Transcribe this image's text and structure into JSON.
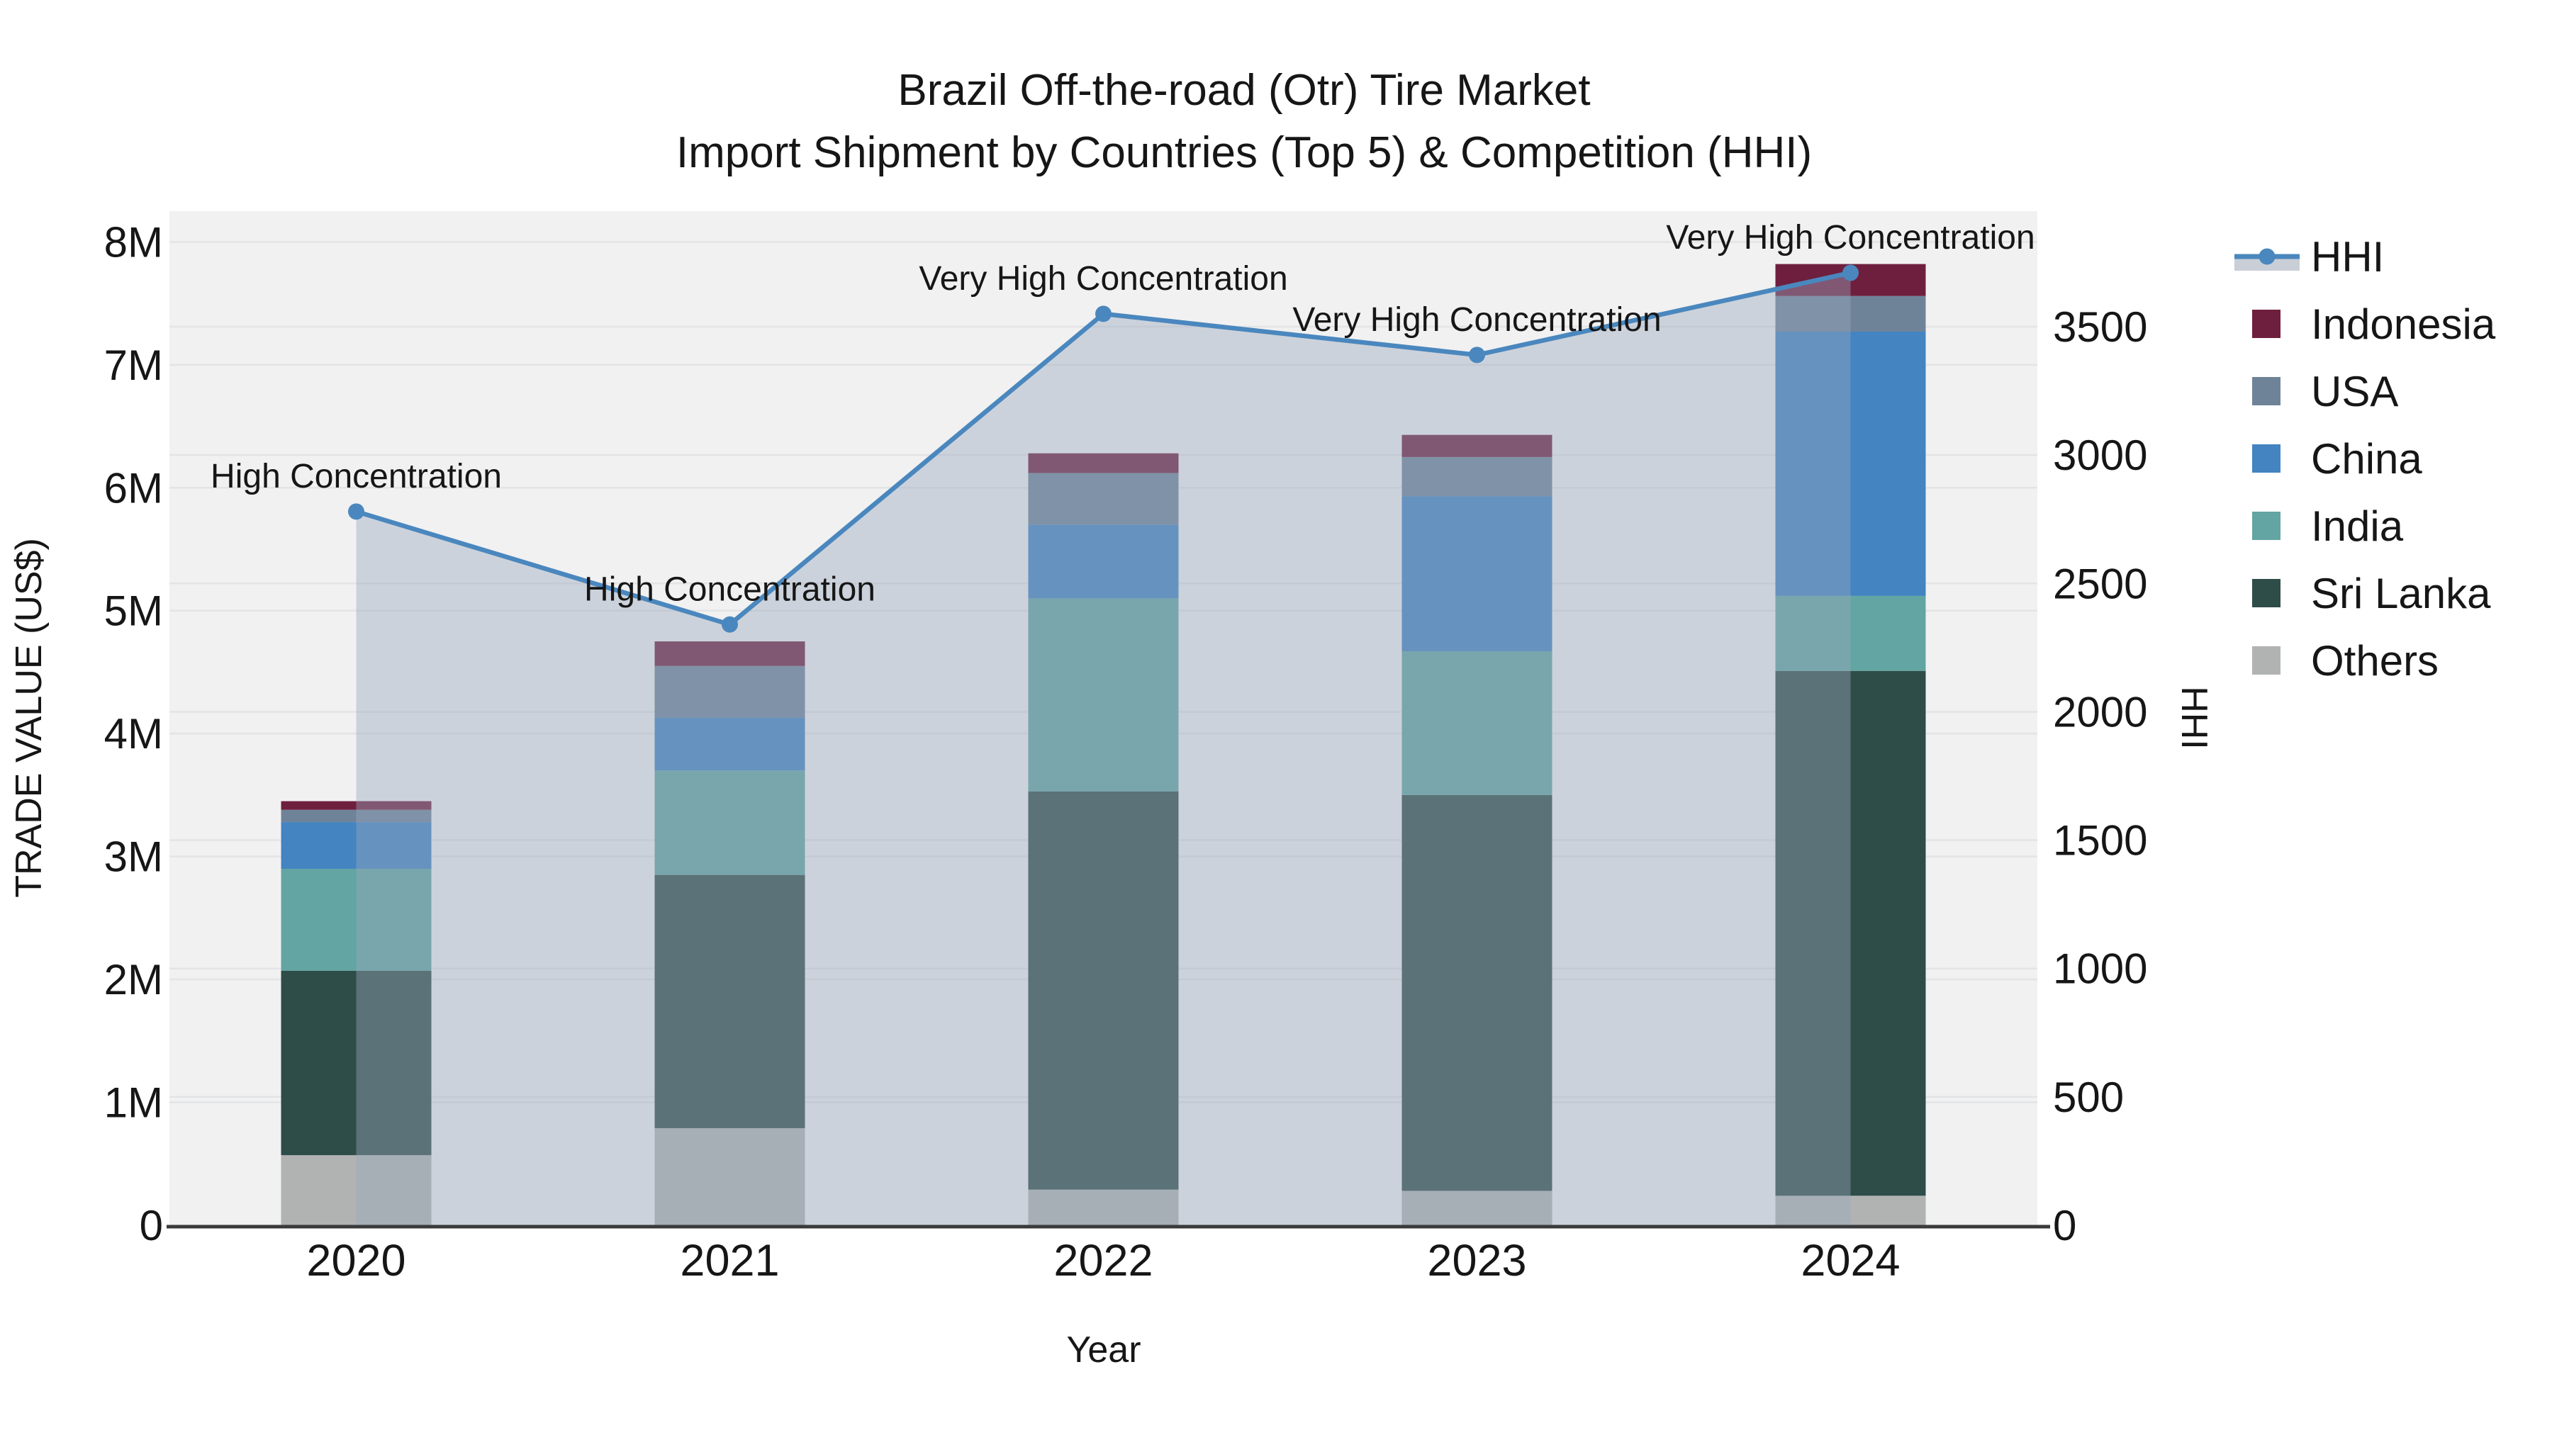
{
  "title": {
    "line1": "Brazil Off-the-road (Otr) Tire Market",
    "line2": "Import Shipment by Countries (Top 5) & Competition (HHI)"
  },
  "chart_data": {
    "type": "combo: stacked bar (trade value) + area line (HHI)",
    "categories": [
      "2020",
      "2021",
      "2022",
      "2023",
      "2024"
    ],
    "bar_unit": "millions US$",
    "bar_series": [
      {
        "name": "Others",
        "color": "#B0B3B2",
        "values": [
          0.57,
          0.79,
          0.29,
          0.28,
          0.24
        ]
      },
      {
        "name": "Sri Lanka",
        "color": "#2E4C48",
        "values": [
          1.5,
          2.06,
          3.24,
          3.22,
          4.27
        ]
      },
      {
        "name": "India",
        "color": "#62A5A2",
        "values": [
          0.83,
          0.85,
          1.57,
          1.17,
          0.61
        ]
      },
      {
        "name": "China",
        "color": "#4384C1",
        "values": [
          0.38,
          0.43,
          0.6,
          1.26,
          2.15
        ]
      },
      {
        "name": "USA",
        "color": "#6F8398",
        "values": [
          0.1,
          0.42,
          0.42,
          0.32,
          0.29
        ]
      },
      {
        "name": "Indonesia",
        "color": "#6F1F3E",
        "values": [
          0.07,
          0.2,
          0.16,
          0.18,
          0.26
        ]
      }
    ],
    "bar_totals": [
      3.45,
      4.75,
      6.28,
      6.43,
      7.82
    ],
    "line_series": {
      "name": "HHI",
      "values": [
        2780,
        2340,
        3550,
        3390,
        3710
      ],
      "annotations": [
        "High Concentration",
        "High Concentration",
        "Very High Concentration",
        "Very High Concentration",
        "Very High Concentration"
      ]
    },
    "axes": {
      "x": {
        "label": "Year",
        "tick_labels": [
          "2020",
          "2021",
          "2022",
          "2023",
          "2024"
        ]
      },
      "y_left": {
        "label": "TRADE VALUE (US$)",
        "tick_labels": [
          "0",
          "1M",
          "2M",
          "3M",
          "4M",
          "5M",
          "6M",
          "7M",
          "8M"
        ],
        "tick_values": [
          0,
          1,
          2,
          3,
          4,
          5,
          6,
          7,
          8
        ],
        "range": [
          0,
          8.25
        ],
        "grid": true
      },
      "y_right": {
        "label": "HHI",
        "tick_labels": [
          "0",
          "500",
          "1000",
          "1500",
          "2000",
          "2500",
          "3000",
          "3500"
        ],
        "tick_values": [
          0,
          500,
          1000,
          1500,
          2000,
          2500,
          3000,
          3500
        ],
        "range": [
          0,
          3950
        ],
        "grid": true
      }
    },
    "legend": {
      "position": "right",
      "entries": [
        {
          "label": "HHI",
          "type": "line"
        },
        {
          "label": "Indonesia",
          "type": "swatch"
        },
        {
          "label": "USA",
          "type": "swatch"
        },
        {
          "label": "China",
          "type": "swatch"
        },
        {
          "label": "India",
          "type": "swatch"
        },
        {
          "label": "Sri Lanka",
          "type": "swatch"
        },
        {
          "label": "Others",
          "type": "swatch"
        }
      ]
    }
  },
  "colors": {
    "hhi_line": "#4A87BE",
    "hhi_fill": "#98A6BC",
    "hhi_fill_opacity": 0.42,
    "hhi_legend_band": "#C9CED7",
    "plot_bg": "#F1F1F1",
    "gridline": "#E3E4E6",
    "axis_line": "#3A3A3A",
    "text": "#161616"
  }
}
